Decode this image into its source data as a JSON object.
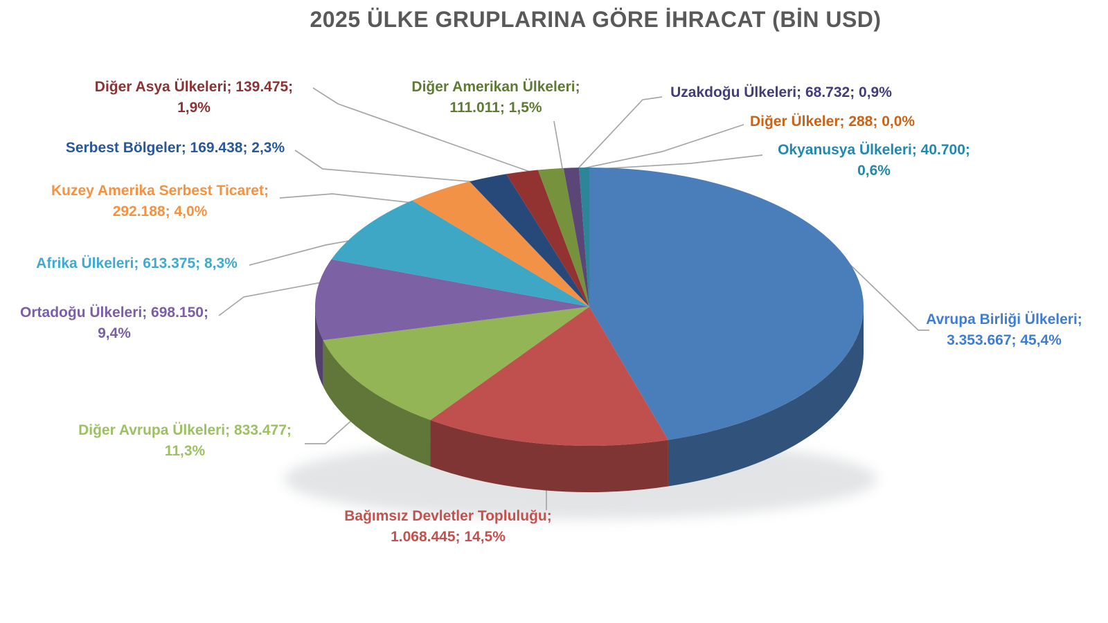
{
  "title": "2025 ÜLKE GRUPLARINA GÖRE İHRACAT (BİN USD)",
  "title_color": "#595959",
  "leader_line_color": "#A6A6A6",
  "chart_data": {
    "type": "pie",
    "style": "3d-pie",
    "title": "2025 ÜLKE GRUPLARINA GÖRE İHRACAT (BİN USD)",
    "value_unit": "BİN USD",
    "label_format": "name; value; percent",
    "start_angle_deg": 0,
    "slices": [
      {
        "slug": "avrupa-birligi-ulkeleri",
        "name": "Avrupa Birliği Ülkeleri",
        "value": "3.353.667",
        "pct": "45,4%",
        "pct_num": 45.4,
        "color": "#4A7EBB",
        "label_color": "#3E7DD6",
        "label": "Avrupa Birliği Ülkeleri;\n3.353.667; 45,4%"
      },
      {
        "slug": "bagimsiz-devletler-toplulugu",
        "name": "Bağımsız Devletler Topluluğu",
        "value": "1.068.445",
        "pct": "14,5%",
        "pct_num": 14.5,
        "color": "#C0504D",
        "label_color": "#C5504C",
        "label": "Bağımsız Devletler Topluluğu;\n1.068.445; 14,5%"
      },
      {
        "slug": "diger-avrupa-ulkeleri",
        "name": "Diğer Avrupa Ülkeleri",
        "value": "833.477",
        "pct": "11,3%",
        "pct_num": 11.3,
        "color": "#93B556",
        "label_color": "#9CC161",
        "label": "Diğer Avrupa Ülkeleri; 833.477;\n11,3%"
      },
      {
        "slug": "ortadogu-ulkeleri",
        "name": "Ortadoğu Ülkeleri",
        "value": "698.150",
        "pct": "9,4%",
        "pct_num": 9.4,
        "color": "#7D61A5",
        "label_color": "#7B5EA7",
        "label": "Ortadoğu Ülkeleri; 698.150;\n9,4%"
      },
      {
        "slug": "afrika-ulkeleri",
        "name": "Afrika Ülkeleri",
        "value": "613.375",
        "pct": "8,3%",
        "pct_num": 8.3,
        "color": "#3EA7C6",
        "label_color": "#3FA9D0",
        "label": "Afrika Ülkeleri; 613.375; 8,3%"
      },
      {
        "slug": "kuzey-amerika-serbest-ticaret",
        "name": "Kuzey Amerika Serbest Ticaret",
        "value": "292.188",
        "pct": "4,0%",
        "pct_num": 4.0,
        "color": "#F29246",
        "label_color": "#F6913F",
        "label": "Kuzey Amerika Serbest Ticaret;\n292.188; 4,0%"
      },
      {
        "slug": "serbest-bolgeler",
        "name": "Serbest Bölgeler",
        "value": "169.438",
        "pct": "2,3%",
        "pct_num": 2.3,
        "color": "#27497A",
        "label_color": "#27589B",
        "label": "Serbest Bölgeler; 169.438; 2,3%"
      },
      {
        "slug": "diger-asya-ulkeleri",
        "name": "Diğer Asya Ülkeleri",
        "value": "139.475",
        "pct": "1,9%",
        "pct_num": 1.9,
        "color": "#923331",
        "label_color": "#8B3333",
        "label": "Diğer Asya Ülkeleri; 139.475;\n1,9%"
      },
      {
        "slug": "diger-amerikan-ulkeleri",
        "name": "Diğer Amerikan Ülkeleri",
        "value": "111.011",
        "pct": "1,5%",
        "pct_num": 1.5,
        "color": "#76923C",
        "label_color": "#5E7A33",
        "label": "Diğer Amerikan Ülkeleri;\n111.011; 1,5%"
      },
      {
        "slug": "uzakdogu-ulkeleri",
        "name": "Uzakdoğu Ülkeleri",
        "value": "68.732",
        "pct": "0,9%",
        "pct_num": 0.9,
        "color": "#5A4778",
        "label_color": "#413C7A",
        "label": "Uzakdoğu Ülkeleri; 68.732; 0,9%"
      },
      {
        "slug": "diger-ulkeler",
        "name": "Diğer Ülkeler",
        "value": "288",
        "pct": "0,0%",
        "pct_num": 0.0,
        "color": "#C55A11",
        "label_color": "#CC6214",
        "label": "Diğer Ülkeler; 288; 0,0%"
      },
      {
        "slug": "okyanusya-ulkeleri",
        "name": "Okyanusya Ülkeleri",
        "value": "40.700",
        "pct": "0,6%",
        "pct_num": 0.6,
        "color": "#2E8499",
        "label_color": "#2189AD",
        "label": "Okyanusya Ülkeleri; 40.700;\n0,6%"
      }
    ]
  }
}
